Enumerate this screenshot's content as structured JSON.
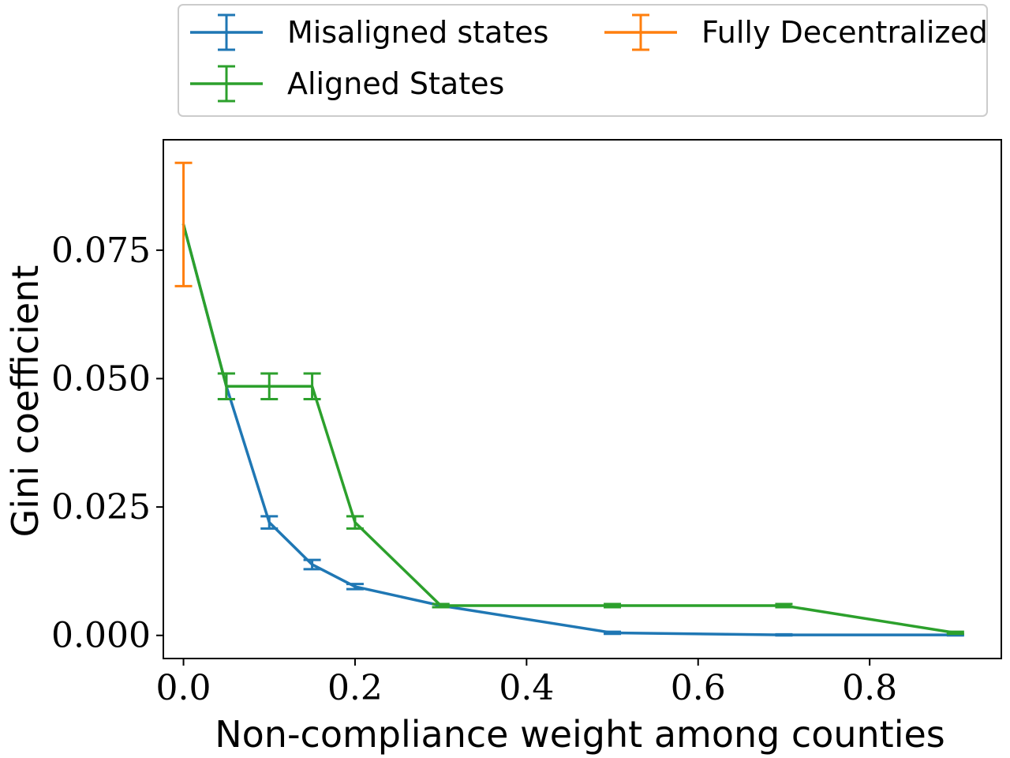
{
  "chart_data": {
    "type": "line",
    "xlabel": "Non-compliance weight among counties",
    "ylabel": "Gini coefficient",
    "xlim": [
      -0.0235,
      0.9535
    ],
    "ylim": [
      -0.0045,
      0.0965
    ],
    "xticks": [
      0.0,
      0.2,
      0.4,
      0.6,
      0.8
    ],
    "xtick_labels": [
      "0.0",
      "0.2",
      "0.4",
      "0.6",
      "0.8"
    ],
    "yticks": [
      0.0,
      0.025,
      0.05,
      0.075
    ],
    "ytick_labels": [
      "0.000",
      "0.025",
      "0.050",
      "0.075"
    ],
    "grid": false,
    "legend_position": "top-center",
    "legend_columns": 2,
    "series": [
      {
        "name": "Misaligned states",
        "color": "#1f77b4",
        "x": [
          0.0,
          0.05,
          0.1,
          0.15,
          0.2,
          0.3,
          0.5,
          0.7,
          0.9
        ],
        "y": [
          0.08,
          0.0485,
          0.022,
          0.0138,
          0.0095,
          0.0058,
          0.0005,
          0.0001,
          0.0001
        ],
        "err": [
          0.0,
          0.0025,
          0.0012,
          0.0009,
          0.0005,
          0.0003,
          0.0002,
          0.0001,
          0.0001
        ]
      },
      {
        "name": "Aligned States",
        "color": "#2ca02c",
        "x": [
          0.0,
          0.05,
          0.1,
          0.15,
          0.2,
          0.3,
          0.5,
          0.7,
          0.9
        ],
        "y": [
          0.08,
          0.0485,
          0.0485,
          0.0485,
          0.022,
          0.0058,
          0.0058,
          0.0058,
          0.0005
        ],
        "err": [
          0.0,
          0.0025,
          0.0025,
          0.0025,
          0.0012,
          0.0003,
          0.0003,
          0.0003,
          0.0002
        ]
      },
      {
        "name": "Fully Decentralized",
        "color": "#ff7f0e",
        "x": [
          0.0
        ],
        "y": [
          0.08
        ],
        "err": [
          0.012
        ]
      }
    ]
  }
}
